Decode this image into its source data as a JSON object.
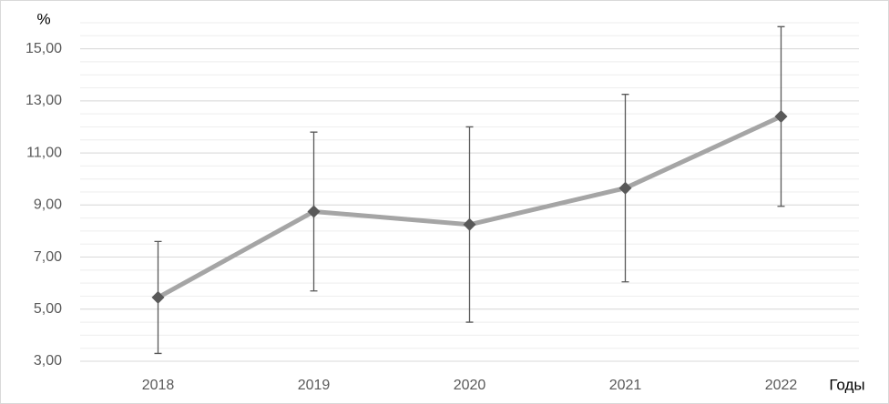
{
  "chart_data": {
    "type": "line",
    "y_label": "%",
    "x_label": "Годы",
    "categories": [
      "2018",
      "2019",
      "2020",
      "2021",
      "2022"
    ],
    "series": [
      {
        "name": "%",
        "color": "#a5a5a5",
        "marker_color": "#595959",
        "error_color": "#595959",
        "values": [
          5.45,
          8.75,
          8.25,
          9.65,
          12.4
        ],
        "errors": [
          2.15,
          3.05,
          3.75,
          3.6,
          3.45
        ]
      }
    ],
    "ylim": [
      3,
      16
    ],
    "yticks": [
      {
        "value": 3,
        "label": "3,00"
      },
      {
        "value": 5,
        "label": "5,00"
      },
      {
        "value": 7,
        "label": "7,00"
      },
      {
        "value": 9,
        "label": "9,00"
      },
      {
        "value": 11,
        "label": "11,00"
      },
      {
        "value": 13,
        "label": "13,00"
      },
      {
        "value": 15,
        "label": "15,00"
      }
    ],
    "grid": true,
    "minor_grid_step": 0.5
  }
}
